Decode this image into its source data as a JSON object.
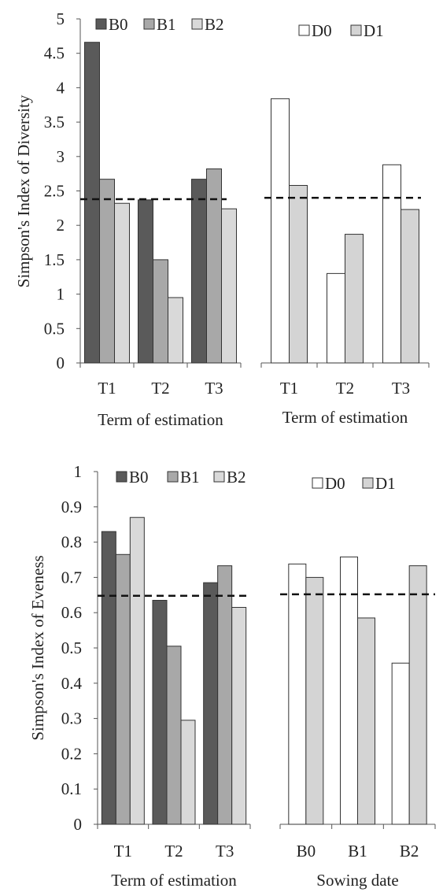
{
  "chart_data": [
    {
      "type": "bar",
      "panel": "top-left",
      "ylabel": "Simpson's Index  of Diversity",
      "xlabel": "Term of estimation",
      "categories": [
        "T1",
        "T2",
        "T3"
      ],
      "ylim": [
        0,
        5
      ],
      "yticks": [
        "0",
        "0.5",
        "1",
        "1.5",
        "2",
        "2.5",
        "3",
        "3.5",
        "4",
        "4.5",
        "5"
      ],
      "legend_position": "top",
      "series": [
        {
          "name": "B0",
          "color": "#5a5a5a",
          "values": [
            4.66,
            2.37,
            2.67
          ]
        },
        {
          "name": "B1",
          "color": "#a8a8a8",
          "values": [
            2.67,
            1.5,
            2.82
          ]
        },
        {
          "name": "B2",
          "color": "#d9d9d9",
          "values": [
            2.32,
            0.95,
            2.24
          ]
        }
      ],
      "reference_line": 2.38
    },
    {
      "type": "bar",
      "panel": "top-right",
      "xlabel": "Term of estimation",
      "categories": [
        "T1",
        "T2",
        "T3"
      ],
      "ylim": [
        0,
        5
      ],
      "legend_position": "top",
      "series": [
        {
          "name": "D0",
          "color": "#ffffff",
          "values": [
            3.84,
            1.3,
            2.88
          ]
        },
        {
          "name": "D1",
          "color": "#d4d4d4",
          "values": [
            2.58,
            1.87,
            2.23
          ]
        }
      ],
      "reference_line": 2.4
    },
    {
      "type": "bar",
      "panel": "bottom-left",
      "ylabel": "Simpson's Index of Eveness",
      "xlabel": "Term of estimation",
      "categories": [
        "T1",
        "T2",
        "T3"
      ],
      "ylim": [
        0,
        1
      ],
      "yticks": [
        "0",
        "0.1",
        "0.2",
        "0.3",
        "0.4",
        "0.5",
        "0.6",
        "0.7",
        "0.8",
        "0.9",
        "1"
      ],
      "legend_position": "top",
      "series": [
        {
          "name": "B0",
          "color": "#5a5a5a",
          "values": [
            0.83,
            0.635,
            0.685
          ]
        },
        {
          "name": "B1",
          "color": "#a8a8a8",
          "values": [
            0.765,
            0.505,
            0.733
          ]
        },
        {
          "name": "B2",
          "color": "#d9d9d9",
          "values": [
            0.87,
            0.295,
            0.615
          ]
        }
      ],
      "reference_line": 0.648
    },
    {
      "type": "bar",
      "panel": "bottom-right",
      "xlabel": "Sowing date",
      "categories": [
        "B0",
        "B1",
        "B2"
      ],
      "ylim": [
        0,
        1
      ],
      "legend_position": "top",
      "series": [
        {
          "name": "D0",
          "color": "#ffffff",
          "values": [
            0.738,
            0.758,
            0.457
          ]
        },
        {
          "name": "D1",
          "color": "#d4d4d4",
          "values": [
            0.7,
            0.585,
            0.733
          ]
        }
      ],
      "reference_line": 0.652
    }
  ]
}
